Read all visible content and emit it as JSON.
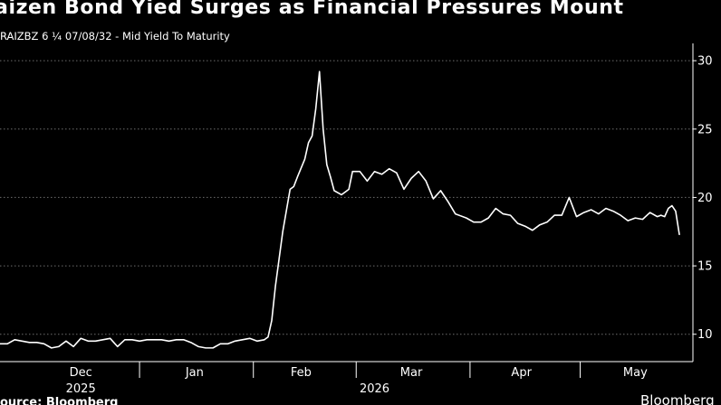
{
  "header": {
    "title": "aizen Bond Yied Surges as Financial Pressures Mount",
    "subtitle": "RAIZBZ 6 ¼ 07/08/32 - Mid Yield To Maturity"
  },
  "footer": {
    "source": "ource: Bloomberg",
    "brand": "Bloomberg"
  },
  "colors": {
    "background": "#000000",
    "line": "#ffffff",
    "grid": "#6e6e6e"
  },
  "chart_data": {
    "type": "line",
    "title": "aizen Bond Yied Surges as Financial Pressures Mount",
    "subtitle": "RAIZBZ 6 ¼ 07/08/32 - Mid Yield To Maturity",
    "xlabel": "",
    "ylabel": "",
    "x_range": [
      "2025-11-24",
      "2026-05-28"
    ],
    "ylim": [
      8,
      31
    ],
    "y_ticks": [
      10,
      15,
      20,
      25,
      30
    ],
    "y_axis_position": "right",
    "grid": true,
    "x_tick_labels": [
      {
        "label": "Dec",
        "date": "2025-12-16"
      },
      {
        "label": "Jan",
        "date": "2026-01-16"
      },
      {
        "label": "Feb",
        "date": "2026-02-14"
      },
      {
        "label": "Mar",
        "date": "2026-03-16"
      },
      {
        "label": "Apr",
        "date": "2026-04-15"
      },
      {
        "label": "May",
        "date": "2026-05-16"
      }
    ],
    "x_dividers": [
      "2026-01-01",
      "2026-02-01",
      "2026-03-01",
      "2026-04-01",
      "2026-05-01"
    ],
    "year_labels": [
      {
        "label": "2025",
        "date": "2025-12-16"
      },
      {
        "label": "2026",
        "date": "2026-03-06"
      }
    ],
    "series": [
      {
        "points": [
          [
            "2025-11-24",
            9.3
          ],
          [
            "2025-11-26",
            9.3
          ],
          [
            "2025-11-28",
            9.6
          ],
          [
            "2025-11-30",
            9.5
          ],
          [
            "2025-12-02",
            9.4
          ],
          [
            "2025-12-04",
            9.4
          ],
          [
            "2025-12-06",
            9.3
          ],
          [
            "2025-12-08",
            9.0
          ],
          [
            "2025-12-10",
            9.1
          ],
          [
            "2025-12-12",
            9.5
          ],
          [
            "2025-12-14",
            9.1
          ],
          [
            "2025-12-16",
            9.7
          ],
          [
            "2025-12-18",
            9.5
          ],
          [
            "2025-12-20",
            9.5
          ],
          [
            "2025-12-22",
            9.6
          ],
          [
            "2025-12-24",
            9.7
          ],
          [
            "2025-12-26",
            9.1
          ],
          [
            "2025-12-28",
            9.6
          ],
          [
            "2025-12-30",
            9.6
          ],
          [
            "2026-01-01",
            9.5
          ],
          [
            "2026-01-03",
            9.6
          ],
          [
            "2026-01-05",
            9.6
          ],
          [
            "2026-01-07",
            9.6
          ],
          [
            "2026-01-09",
            9.5
          ],
          [
            "2026-01-11",
            9.6
          ],
          [
            "2026-01-13",
            9.6
          ],
          [
            "2026-01-15",
            9.4
          ],
          [
            "2026-01-17",
            9.1
          ],
          [
            "2026-01-19",
            9.0
          ],
          [
            "2026-01-21",
            9.0
          ],
          [
            "2026-01-23",
            9.3
          ],
          [
            "2026-01-25",
            9.3
          ],
          [
            "2026-01-27",
            9.5
          ],
          [
            "2026-01-29",
            9.6
          ],
          [
            "2026-01-31",
            9.7
          ],
          [
            "2026-02-02",
            9.5
          ],
          [
            "2026-02-04",
            9.6
          ],
          [
            "2026-02-05",
            9.8
          ],
          [
            "2026-02-06",
            11.0
          ],
          [
            "2026-02-07",
            13.5
          ],
          [
            "2026-02-08",
            15.5
          ],
          [
            "2026-02-09",
            17.5
          ],
          [
            "2026-02-11",
            20.6
          ],
          [
            "2026-02-12",
            20.8
          ],
          [
            "2026-02-13",
            21.5
          ],
          [
            "2026-02-15",
            22.8
          ],
          [
            "2026-02-16",
            24.0
          ],
          [
            "2026-02-17",
            24.5
          ],
          [
            "2026-02-18",
            26.5
          ],
          [
            "2026-02-19",
            29.2
          ],
          [
            "2026-02-20",
            25.0
          ],
          [
            "2026-02-21",
            22.4
          ],
          [
            "2026-02-22",
            21.5
          ],
          [
            "2026-02-23",
            20.5
          ],
          [
            "2026-02-25",
            20.2
          ],
          [
            "2026-02-27",
            20.6
          ],
          [
            "2026-02-28",
            21.9
          ],
          [
            "2026-03-02",
            21.9
          ],
          [
            "2026-03-04",
            21.2
          ],
          [
            "2026-03-06",
            21.9
          ],
          [
            "2026-03-08",
            21.7
          ],
          [
            "2026-03-10",
            22.1
          ],
          [
            "2026-03-12",
            21.8
          ],
          [
            "2026-03-14",
            20.6
          ],
          [
            "2026-03-16",
            21.4
          ],
          [
            "2026-03-18",
            21.9
          ],
          [
            "2026-03-20",
            21.2
          ],
          [
            "2026-03-22",
            19.9
          ],
          [
            "2026-03-24",
            20.5
          ],
          [
            "2026-03-26",
            19.7
          ],
          [
            "2026-03-28",
            18.8
          ],
          [
            "2026-03-31",
            18.5
          ],
          [
            "2026-04-02",
            18.2
          ],
          [
            "2026-04-04",
            18.2
          ],
          [
            "2026-04-06",
            18.5
          ],
          [
            "2026-04-08",
            19.2
          ],
          [
            "2026-04-10",
            18.8
          ],
          [
            "2026-04-12",
            18.7
          ],
          [
            "2026-04-14",
            18.1
          ],
          [
            "2026-04-16",
            17.9
          ],
          [
            "2026-04-18",
            17.6
          ],
          [
            "2026-04-20",
            18.0
          ],
          [
            "2026-04-22",
            18.2
          ],
          [
            "2026-04-24",
            18.7
          ],
          [
            "2026-04-26",
            18.7
          ],
          [
            "2026-04-28",
            20.0
          ],
          [
            "2026-04-30",
            18.6
          ],
          [
            "2026-05-02",
            18.9
          ],
          [
            "2026-05-04",
            19.1
          ],
          [
            "2026-05-06",
            18.8
          ],
          [
            "2026-05-08",
            19.2
          ],
          [
            "2026-05-10",
            19.0
          ],
          [
            "2026-05-12",
            18.7
          ],
          [
            "2026-05-14",
            18.3
          ],
          [
            "2026-05-16",
            18.5
          ],
          [
            "2026-05-18",
            18.4
          ],
          [
            "2026-05-20",
            18.9
          ],
          [
            "2026-05-22",
            18.6
          ],
          [
            "2026-05-23",
            18.7
          ],
          [
            "2026-05-24",
            18.6
          ],
          [
            "2026-05-25",
            19.2
          ],
          [
            "2026-05-26",
            19.4
          ],
          [
            "2026-05-27",
            19.0
          ],
          [
            "2026-05-28",
            17.3
          ]
        ]
      }
    ]
  }
}
